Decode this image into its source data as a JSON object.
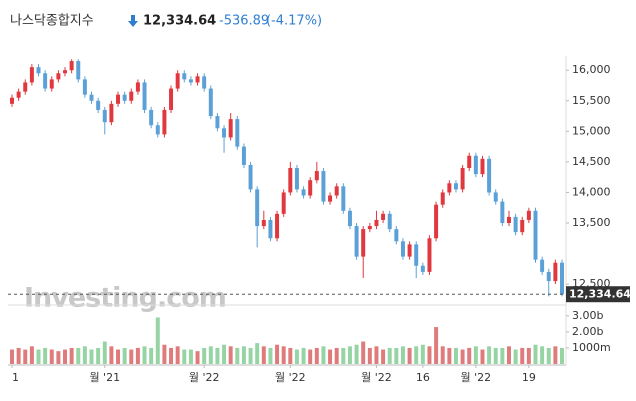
{
  "chart_data": {
    "type": "candlestick",
    "title": "나스닥종합지수",
    "change": "-536.89",
    "change_pct": "(-4.17%)",
    "watermark": "Investing.com",
    "last_price": {
      "value": 12334.64,
      "label": "12,334.64"
    },
    "up_color": "#e0383e",
    "down_color": "#5ba0d6",
    "volume_up_color": "#e07b7b",
    "volume_down_color": "#96d4a4",
    "grid": false,
    "ylim": [
      12240,
      16200
    ],
    "yticks": [
      {
        "value": 16000,
        "label": "16,000"
      },
      {
        "value": 15500,
        "label": "15,500"
      },
      {
        "value": 15000,
        "label": "15,000"
      },
      {
        "value": 14500,
        "label": "14,500"
      },
      {
        "value": 14000,
        "label": "14,000"
      },
      {
        "value": 13500,
        "label": "13,500"
      },
      {
        "value": 12500,
        "label": "12,500"
      }
    ],
    "volume_lim": [
      0,
      3.3
    ],
    "volume_ticks": [
      {
        "value": 3,
        "label": "3.00b"
      },
      {
        "value": 2,
        "label": "2.00b"
      },
      {
        "value": 1,
        "label": "1000m"
      }
    ],
    "xlim": [
      0,
      83
    ],
    "xticks": [
      {
        "value": 0,
        "label": "1"
      },
      {
        "value": 14,
        "label": "월 '21"
      },
      {
        "value": 29,
        "label": "월 '22"
      },
      {
        "value": 42,
        "label": "월 '22"
      },
      {
        "value": 55,
        "label": "월 '22"
      },
      {
        "value": 62,
        "label": "16"
      },
      {
        "value": 70,
        "label": "월 '22"
      },
      {
        "value": 78,
        "label": "19"
      }
    ],
    "open": [
      15450,
      15550,
      15650,
      15800,
      16050,
      15950,
      15700,
      15850,
      15950,
      16000,
      16150,
      15850,
      15600,
      15500,
      15350,
      15150,
      15450,
      15600,
      15500,
      15650,
      15800,
      15350,
      15100,
      14950,
      15350,
      15700,
      15950,
      15850,
      15800,
      15900,
      15700,
      15250,
      15050,
      14900,
      15200,
      14750,
      14450,
      14050,
      13450,
      13550,
      13250,
      13650,
      14000,
      14400,
      14050,
      13950,
      14200,
      14350,
      13850,
      13950,
      14100,
      13700,
      13450,
      12950,
      13400,
      13450,
      13550,
      13650,
      13400,
      13200,
      12950,
      13150,
      12800,
      12700,
      13250,
      13800,
      14000,
      14150,
      14050,
      14400,
      14600,
      14300,
      14550,
      14000,
      13850,
      13500,
      13600,
      13350,
      13550,
      13700,
      12900,
      12700,
      12550,
      12850
    ],
    "high": [
      15600,
      15700,
      15850,
      16100,
      16100,
      16000,
      15900,
      16000,
      16050,
      16180,
      16180,
      15900,
      15650,
      15550,
      15400,
      15500,
      15650,
      15650,
      15700,
      15850,
      15850,
      15400,
      15150,
      15400,
      15750,
      16000,
      16000,
      15900,
      15950,
      15950,
      15750,
      15300,
      15100,
      15300,
      15250,
      14800,
      14500,
      14100,
      13700,
      13600,
      13700,
      14050,
      14500,
      14450,
      14100,
      14250,
      14500,
      14400,
      14000,
      14150,
      14150,
      13750,
      13500,
      13450,
      13500,
      13700,
      13700,
      13700,
      13450,
      13250,
      13200,
      13200,
      12850,
      13300,
      13850,
      14050,
      14200,
      14200,
      14450,
      14650,
      14650,
      14600,
      14600,
      14050,
      13900,
      13700,
      13650,
      13600,
      13750,
      13750,
      12950,
      12750,
      12900,
      12900
    ],
    "low": [
      15400,
      15500,
      15600,
      15750,
      15900,
      15650,
      15650,
      15800,
      15900,
      15950,
      15800,
      15550,
      15450,
      15300,
      14950,
      15100,
      15400,
      15450,
      15450,
      15600,
      15300,
      15050,
      14900,
      14900,
      15300,
      15650,
      15800,
      15750,
      15750,
      15650,
      15200,
      15000,
      14650,
      14850,
      14700,
      14400,
      14000,
      13100,
      13400,
      13200,
      13200,
      13600,
      13950,
      14000,
      13900,
      13900,
      14150,
      13800,
      13800,
      13900,
      13650,
      13400,
      12900,
      12600,
      13350,
      13400,
      13500,
      13350,
      13150,
      12900,
      12900,
      12600,
      12650,
      12650,
      13200,
      13750,
      13950,
      14000,
      14000,
      14350,
      14250,
      14250,
      13950,
      13800,
      13450,
      13450,
      13300,
      13300,
      13500,
      12850,
      12650,
      12300,
      12500,
      12300
    ],
    "close": [
      15550,
      15650,
      15800,
      16050,
      15950,
      15700,
      15850,
      15950,
      16000,
      16150,
      15850,
      15600,
      15500,
      15350,
      15150,
      15450,
      15600,
      15500,
      15650,
      15800,
      15350,
      15100,
      14950,
      15350,
      15700,
      15950,
      15850,
      15800,
      15900,
      15700,
      15250,
      15050,
      14900,
      15200,
      14750,
      14450,
      14050,
      13450,
      13550,
      13250,
      13650,
      14000,
      14400,
      14050,
      13950,
      14200,
      14350,
      13850,
      13950,
      14100,
      13700,
      13450,
      12950,
      13400,
      13450,
      13550,
      13650,
      13400,
      13200,
      12950,
      13150,
      12800,
      12700,
      13250,
      13800,
      14000,
      14150,
      14050,
      14400,
      14600,
      14300,
      14550,
      14000,
      13850,
      13500,
      13600,
      13350,
      13550,
      13700,
      12900,
      12700,
      12550,
      12850,
      12334.64
    ],
    "volume": [
      0.9,
      1.0,
      0.9,
      1.1,
      0.9,
      1.0,
      0.9,
      0.8,
      0.9,
      1.0,
      1.0,
      1.1,
      0.9,
      1.0,
      1.4,
      1.1,
      0.9,
      1.0,
      0.9,
      1.0,
      1.1,
      1.0,
      2.9,
      1.2,
      1.0,
      1.1,
      0.9,
      0.9,
      0.8,
      1.0,
      1.1,
      1.0,
      1.2,
      1.1,
      1.0,
      1.1,
      1.0,
      1.3,
      1.1,
      1.0,
      1.2,
      1.1,
      1.0,
      0.9,
      1.0,
      0.9,
      1.0,
      1.1,
      0.9,
      1.0,
      1.0,
      1.1,
      1.2,
      1.4,
      1.0,
      1.1,
      0.9,
      1.0,
      1.0,
      1.1,
      1.0,
      1.1,
      1.2,
      1.1,
      2.3,
      1.1,
      1.0,
      1.0,
      0.9,
      1.0,
      1.1,
      0.9,
      1.1,
      1.0,
      1.0,
      1.1,
      0.9,
      1.0,
      1.0,
      1.2,
      1.1,
      1.0,
      1.1,
      1.0
    ]
  }
}
